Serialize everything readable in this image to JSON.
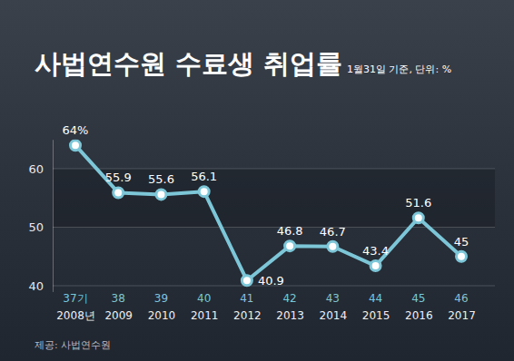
{
  "chart_data": {
    "type": "line",
    "title": "사법연수원 수료생 취업률",
    "subtitle": "1월31일 기준, 단위: %",
    "source": "제공: 사법연수원",
    "categories": [
      "2008년",
      "2009",
      "2010",
      "2011",
      "2012",
      "2013",
      "2014",
      "2015",
      "2016",
      "2017"
    ],
    "cohorts": [
      "37기",
      "38",
      "39",
      "40",
      "41",
      "42",
      "43",
      "44",
      "45",
      "46"
    ],
    "values": [
      64,
      55.9,
      55.6,
      56.1,
      40.9,
      46.8,
      46.7,
      43.4,
      51.6,
      45
    ],
    "value_labels": [
      "64%",
      "55.9",
      "55.6",
      "56.1",
      "40.9",
      "46.8",
      "46.7",
      "43.4",
      "51.6",
      "45"
    ],
    "color": "#7cc6d8",
    "marker": "circle",
    "ylim": [
      39,
      65
    ],
    "yticks": [
      40,
      50,
      60
    ],
    "grid": true,
    "data_labels": true
  }
}
